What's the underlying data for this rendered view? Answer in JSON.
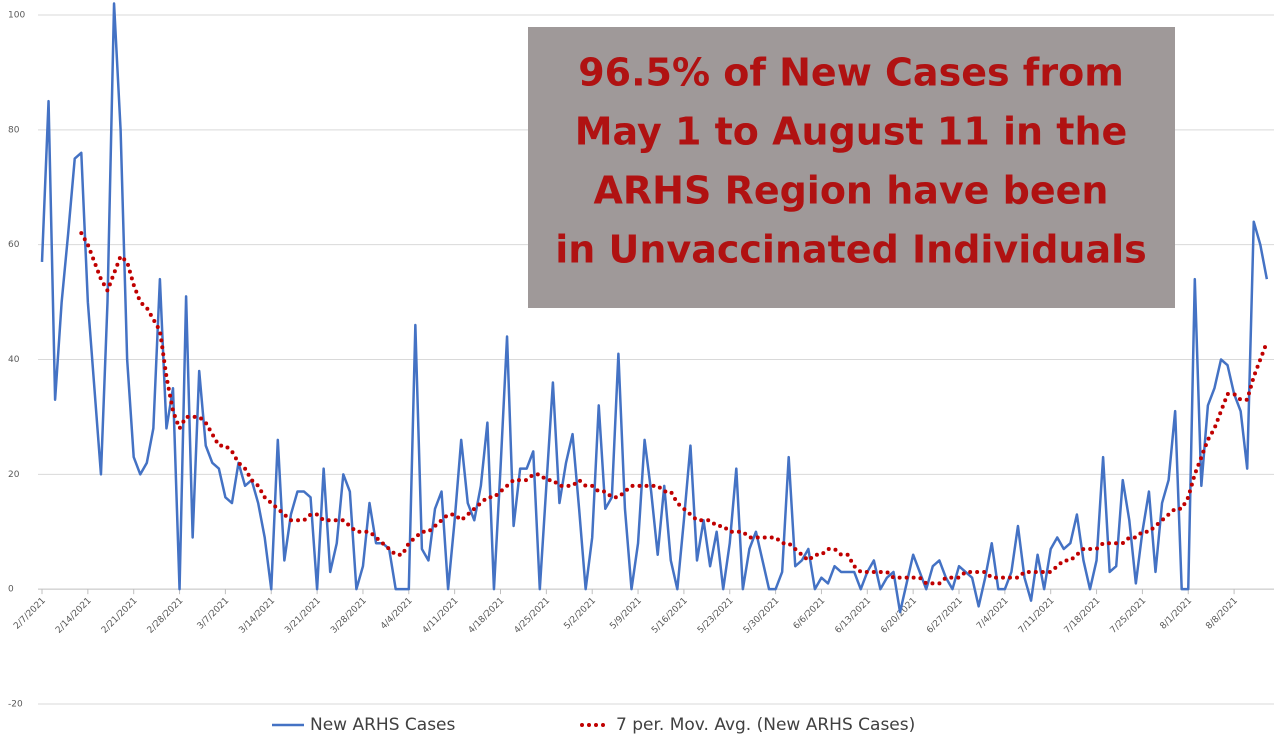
{
  "chart_data": {
    "type": "line",
    "categories": [
      "2/7/2021",
      null,
      null,
      null,
      null,
      null,
      null,
      "2/14/2021",
      null,
      null,
      null,
      null,
      null,
      null,
      "2/21/2021",
      null,
      null,
      null,
      null,
      null,
      null,
      "2/28/2021",
      null,
      null,
      null,
      null,
      null,
      null,
      "3/7/2021",
      null,
      null,
      null,
      null,
      null,
      null,
      "3/14/2021",
      null,
      null,
      null,
      null,
      null,
      null,
      "3/21/2021",
      null,
      null,
      null,
      null,
      null,
      null,
      "3/28/2021",
      null,
      null,
      null,
      null,
      null,
      null,
      "4/4/2021",
      null,
      null,
      null,
      null,
      null,
      null,
      "4/11/2021",
      null,
      null,
      null,
      null,
      null,
      null,
      "4/18/2021",
      null,
      null,
      null,
      null,
      null,
      null,
      "4/25/2021",
      null,
      null,
      null,
      null,
      null,
      null,
      "5/2/2021",
      null,
      null,
      null,
      null,
      null,
      null,
      "5/9/2021",
      null,
      null,
      null,
      null,
      null,
      null,
      "5/16/2021",
      null,
      null,
      null,
      null,
      null,
      null,
      "5/23/2021",
      null,
      null,
      null,
      null,
      null,
      null,
      "5/30/2021",
      null,
      null,
      null,
      null,
      null,
      null,
      "6/6/2021",
      null,
      null,
      null,
      null,
      null,
      null,
      "6/13/2021",
      null,
      null,
      null,
      null,
      null,
      null,
      "6/20/2021",
      null,
      null,
      null,
      null,
      null,
      null,
      "6/27/2021",
      null,
      null,
      null,
      null,
      null,
      null,
      "7/4/2021",
      null,
      null,
      null,
      null,
      null,
      null,
      "7/11/2021",
      null,
      null,
      null,
      null,
      null,
      null,
      "7/18/2021",
      null,
      null,
      null,
      null,
      null,
      null,
      "7/25/2021",
      null,
      null,
      null,
      null,
      null,
      null,
      "8/1/2021",
      null,
      null,
      null,
      null,
      null,
      null,
      "8/8/2021",
      null,
      null,
      null,
      null,
      null
    ],
    "series": [
      {
        "name": "New ARHS Cases",
        "color": "#4472c4",
        "line_style": "solid",
        "values": [
          57,
          85,
          33,
          50,
          62,
          75,
          76,
          50,
          35,
          20,
          50,
          102,
          80,
          40,
          23,
          20,
          22,
          28,
          54,
          28,
          35,
          0,
          51,
          9,
          38,
          25,
          22,
          21,
          16,
          15,
          22,
          18,
          19,
          15,
          9,
          0,
          26,
          5,
          13,
          17,
          17,
          16,
          0,
          21,
          3,
          8,
          20,
          17,
          0,
          4,
          15,
          8,
          8,
          7,
          0,
          0,
          0,
          46,
          7,
          5,
          14,
          17,
          0,
          12,
          26,
          15,
          12,
          18,
          29,
          0,
          21,
          44,
          11,
          21,
          21,
          24,
          0,
          18,
          36,
          15,
          22,
          27,
          14,
          0,
          9,
          32,
          14,
          16,
          41,
          14,
          0,
          8,
          26,
          17,
          6,
          18,
          5,
          0,
          12,
          25,
          5,
          12,
          4,
          10,
          0,
          8,
          21,
          0,
          7,
          10,
          5,
          0,
          0,
          3,
          23,
          4,
          5,
          7,
          0,
          2,
          1,
          4,
          3,
          3,
          3,
          0,
          3,
          5,
          0,
          2,
          3,
          -4,
          1,
          6,
          3,
          0,
          4,
          5,
          2,
          0,
          4,
          3,
          2,
          -3,
          2,
          8,
          0,
          0,
          3,
          11,
          2,
          -2,
          6,
          0,
          7,
          9,
          7,
          8,
          13,
          5,
          0,
          5,
          23,
          3,
          4,
          19,
          12,
          1,
          10,
          17,
          3,
          15,
          19,
          31,
          0,
          0,
          54,
          18,
          32,
          35,
          40,
          39,
          34,
          31,
          21,
          64,
          60,
          54
        ]
      },
      {
        "name": "7 per. Mov. Avg. (New ARHS Cases)",
        "color": "#c00000",
        "line_style": "dotted",
        "values": [
          null,
          null,
          null,
          null,
          null,
          null,
          62,
          60,
          57,
          54,
          52,
          55,
          58,
          57,
          53,
          50,
          49,
          47,
          45,
          37,
          31,
          28,
          30,
          30,
          30,
          29,
          27,
          25,
          25,
          24,
          22,
          21,
          19,
          18,
          16,
          15,
          14,
          13,
          12,
          12,
          12,
          13,
          13,
          12,
          12,
          12,
          12,
          11,
          10,
          10,
          10,
          9,
          8,
          7,
          6,
          6,
          8,
          9,
          10,
          10,
          11,
          12,
          13,
          13,
          12,
          13,
          14,
          15,
          16,
          16,
          17,
          18,
          19,
          19,
          19,
          20,
          20,
          19,
          19,
          18,
          18,
          18,
          19,
          18,
          18,
          17,
          17,
          16,
          16,
          17,
          18,
          18,
          18,
          18,
          18,
          17,
          17,
          15,
          14,
          13,
          12,
          12,
          12,
          11,
          11,
          10,
          10,
          10,
          9,
          9,
          9,
          9,
          9,
          8,
          8,
          7,
          6,
          5,
          6,
          6,
          7,
          7,
          6,
          6,
          4,
          3,
          3,
          3,
          3,
          3,
          2,
          2,
          2,
          2,
          2,
          1,
          1,
          1,
          2,
          2,
          2,
          3,
          3,
          3,
          3,
          2,
          2,
          2,
          2,
          2,
          3,
          3,
          3,
          3,
          3,
          4,
          5,
          5,
          6,
          7,
          7,
          7,
          8,
          8,
          8,
          8,
          9,
          9,
          10,
          10,
          11,
          12,
          13,
          14,
          14,
          16,
          20,
          23,
          26,
          28,
          31,
          34,
          34,
          33,
          33,
          37,
          40,
          43
        ]
      }
    ],
    "ylim": [
      -20,
      100
    ],
    "yticks": [
      -20,
      0,
      20,
      40,
      60,
      80,
      100
    ],
    "grid": true,
    "legend": "bottom",
    "annotation": [
      "96.5% of New Cases from",
      "May 1 to August 11 in the",
      "ARHS Region have been",
      "in Unvaccinated Individuals"
    ]
  }
}
